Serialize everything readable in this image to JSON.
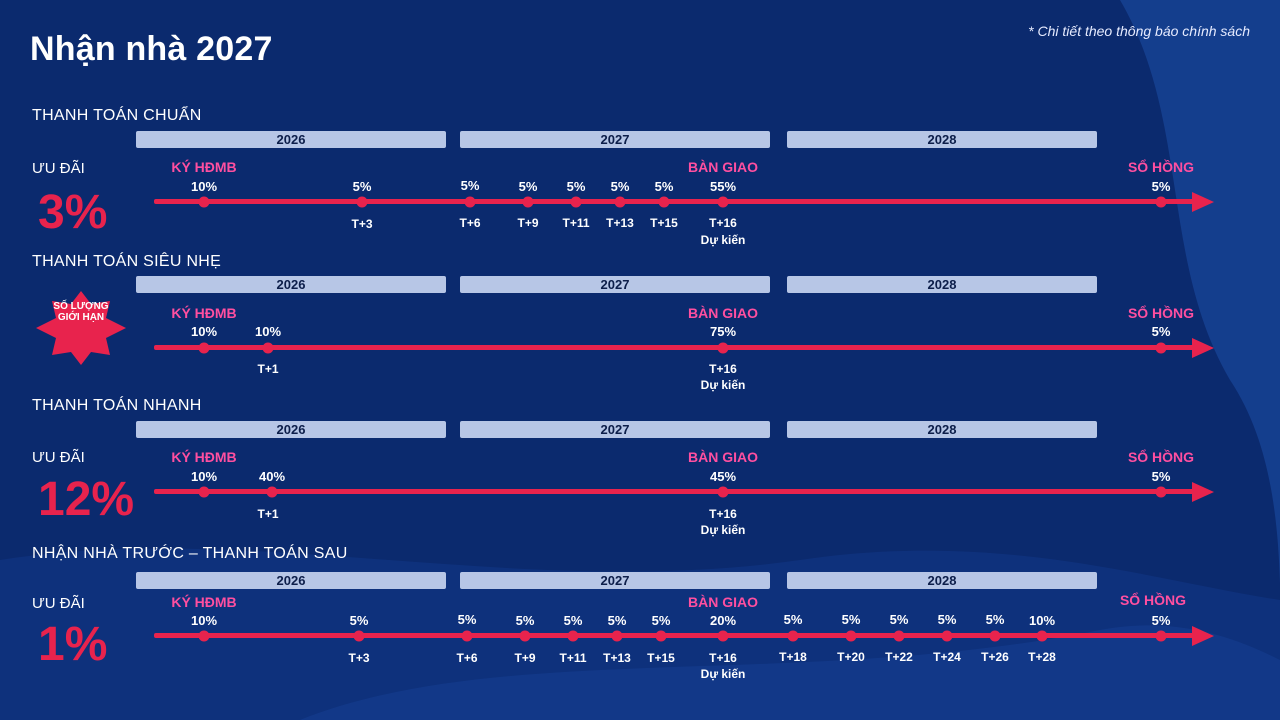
{
  "title": "Nhận nhà 2027",
  "footnote": "* Chi tiết theo thông báo chính sách",
  "years": [
    "2026",
    "2027",
    "2028"
  ],
  "milestones": {
    "sign": "KÝ HĐMB",
    "handover": "BÀN GIAO",
    "pink_book": "SỔ HỒNG"
  },
  "expected_label": "Dự kiến",
  "colors": {
    "background": "#0b2a6e",
    "accent": "#e8234d",
    "milestone": "#ff4fa0",
    "year_bar": "#b7c6e6"
  },
  "plans": [
    {
      "name": "THANH TOÁN CHUẨN",
      "offer_label": "ƯU ĐÃI",
      "discount": "3%",
      "payments": [
        {
          "pct": "10%",
          "t": ""
        },
        {
          "pct": "5%",
          "t": "T+3"
        },
        {
          "pct": "5%",
          "t": "T+6"
        },
        {
          "pct": "5%",
          "t": "T+9"
        },
        {
          "pct": "5%",
          "t": "T+11"
        },
        {
          "pct": "5%",
          "t": "T+13"
        },
        {
          "pct": "5%",
          "t": "T+15"
        },
        {
          "pct": "55%",
          "t": "T+16"
        },
        {
          "pct": "5%",
          "t": ""
        }
      ]
    },
    {
      "name": "THANH TOÁN SIÊU NHẸ",
      "badge": "SỐ LƯỢNG GIỚI HẠN",
      "payments": [
        {
          "pct": "10%",
          "t": ""
        },
        {
          "pct": "10%",
          "t": "T+1"
        },
        {
          "pct": "75%",
          "t": "T+16"
        },
        {
          "pct": "5%",
          "t": ""
        }
      ]
    },
    {
      "name": "THANH TOÁN NHANH",
      "offer_label": "ƯU ĐÃI",
      "discount": "12%",
      "payments": [
        {
          "pct": "10%",
          "t": ""
        },
        {
          "pct": "40%",
          "t": "T+1"
        },
        {
          "pct": "45%",
          "t": "T+16"
        },
        {
          "pct": "5%",
          "t": ""
        }
      ]
    },
    {
      "name": "NHẬN NHÀ TRƯỚC – THANH TOÁN SAU",
      "offer_label": "ƯU ĐÃI",
      "discount": "1%",
      "payments": [
        {
          "pct": "10%",
          "t": ""
        },
        {
          "pct": "5%",
          "t": "T+3"
        },
        {
          "pct": "5%",
          "t": "T+6"
        },
        {
          "pct": "5%",
          "t": "T+9"
        },
        {
          "pct": "5%",
          "t": "T+11"
        },
        {
          "pct": "5%",
          "t": "T+13"
        },
        {
          "pct": "5%",
          "t": "T+15"
        },
        {
          "pct": "20%",
          "t": "T+16"
        },
        {
          "pct": "5%",
          "t": "T+18"
        },
        {
          "pct": "5%",
          "t": "T+20"
        },
        {
          "pct": "5%",
          "t": "T+22"
        },
        {
          "pct": "5%",
          "t": "T+24"
        },
        {
          "pct": "5%",
          "t": "T+26"
        },
        {
          "pct": "10%",
          "t": "T+28"
        },
        {
          "pct": "5%",
          "t": ""
        }
      ]
    }
  ]
}
